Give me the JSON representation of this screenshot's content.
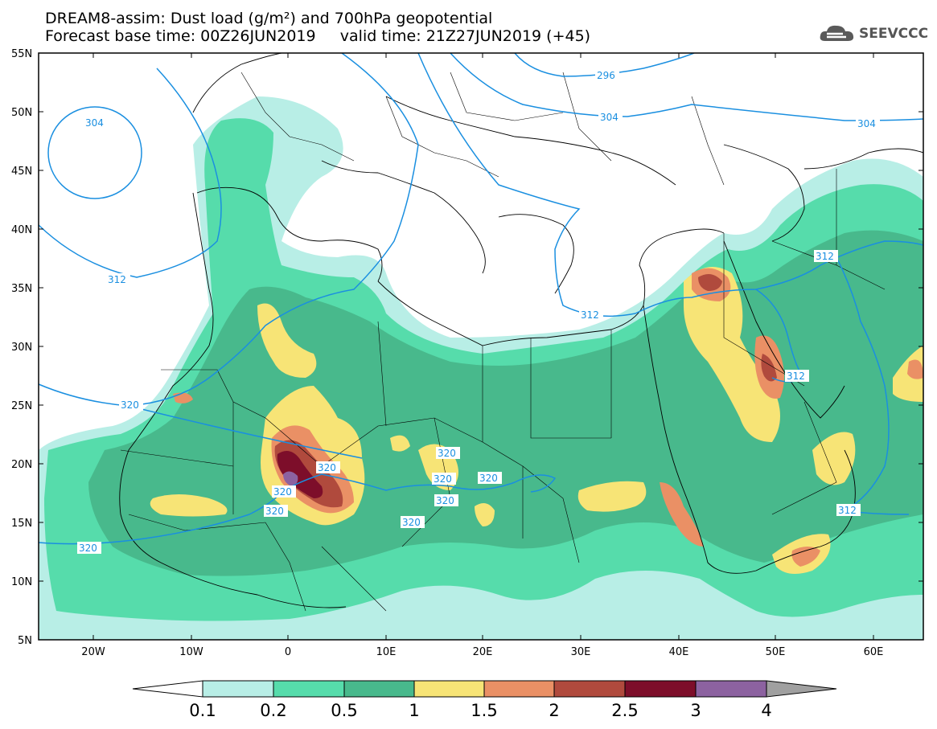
{
  "header": {
    "title_line1": "DREAM8-assim: Dust load (g/m²) and 700hPa geopotential",
    "title_line2": "Forecast base time: 00Z26JUN2019     valid time: 21Z27JUN2019 (+45)",
    "logo_text": "SEEVCCC"
  },
  "axes": {
    "lat_labels": [
      "55N",
      "50N",
      "45N",
      "40N",
      "35N",
      "30N",
      "25N",
      "20N",
      "15N",
      "10N",
      "5N"
    ],
    "lon_labels": [
      "20W",
      "10W",
      "0",
      "10E",
      "20E",
      "30E",
      "40E",
      "50E",
      "60E"
    ]
  },
  "contour_labels": {
    "l304a": "304",
    "l312a": "312",
    "l320a": "320",
    "l296": "296",
    "l304b": "304",
    "l304c": "304",
    "l312b": "312",
    "l312c": "312",
    "l312d": "312",
    "l312e": "312",
    "l320b": "320",
    "l320c": "320",
    "l320d": "320",
    "l320e": "320",
    "l320f": "320",
    "l320g": "320",
    "l320h": "320",
    "l320i": "320",
    "l320j": "320"
  },
  "colorbar": {
    "labels": [
      "0.1",
      "0.2",
      "0.5",
      "1",
      "1.5",
      "2",
      "2.5",
      "3",
      "4"
    ],
    "colors": [
      "#b8eee6",
      "#56dcab",
      "#48b98c",
      "#f7e476",
      "#ea9065",
      "#b04a3d",
      "#7d0e2a",
      "#8c62a0",
      "#a0a0a0"
    ]
  },
  "colors": {
    "contour": "#1a8fe0",
    "land_boundary": "#000000",
    "c01": "#b8eee6",
    "c02": "#56dcab",
    "c05": "#48b98c",
    "c1": "#f7e476",
    "c15": "#ea9065",
    "c2": "#b04a3d",
    "c25": "#7d0e2a",
    "c3": "#8c62a0"
  }
}
